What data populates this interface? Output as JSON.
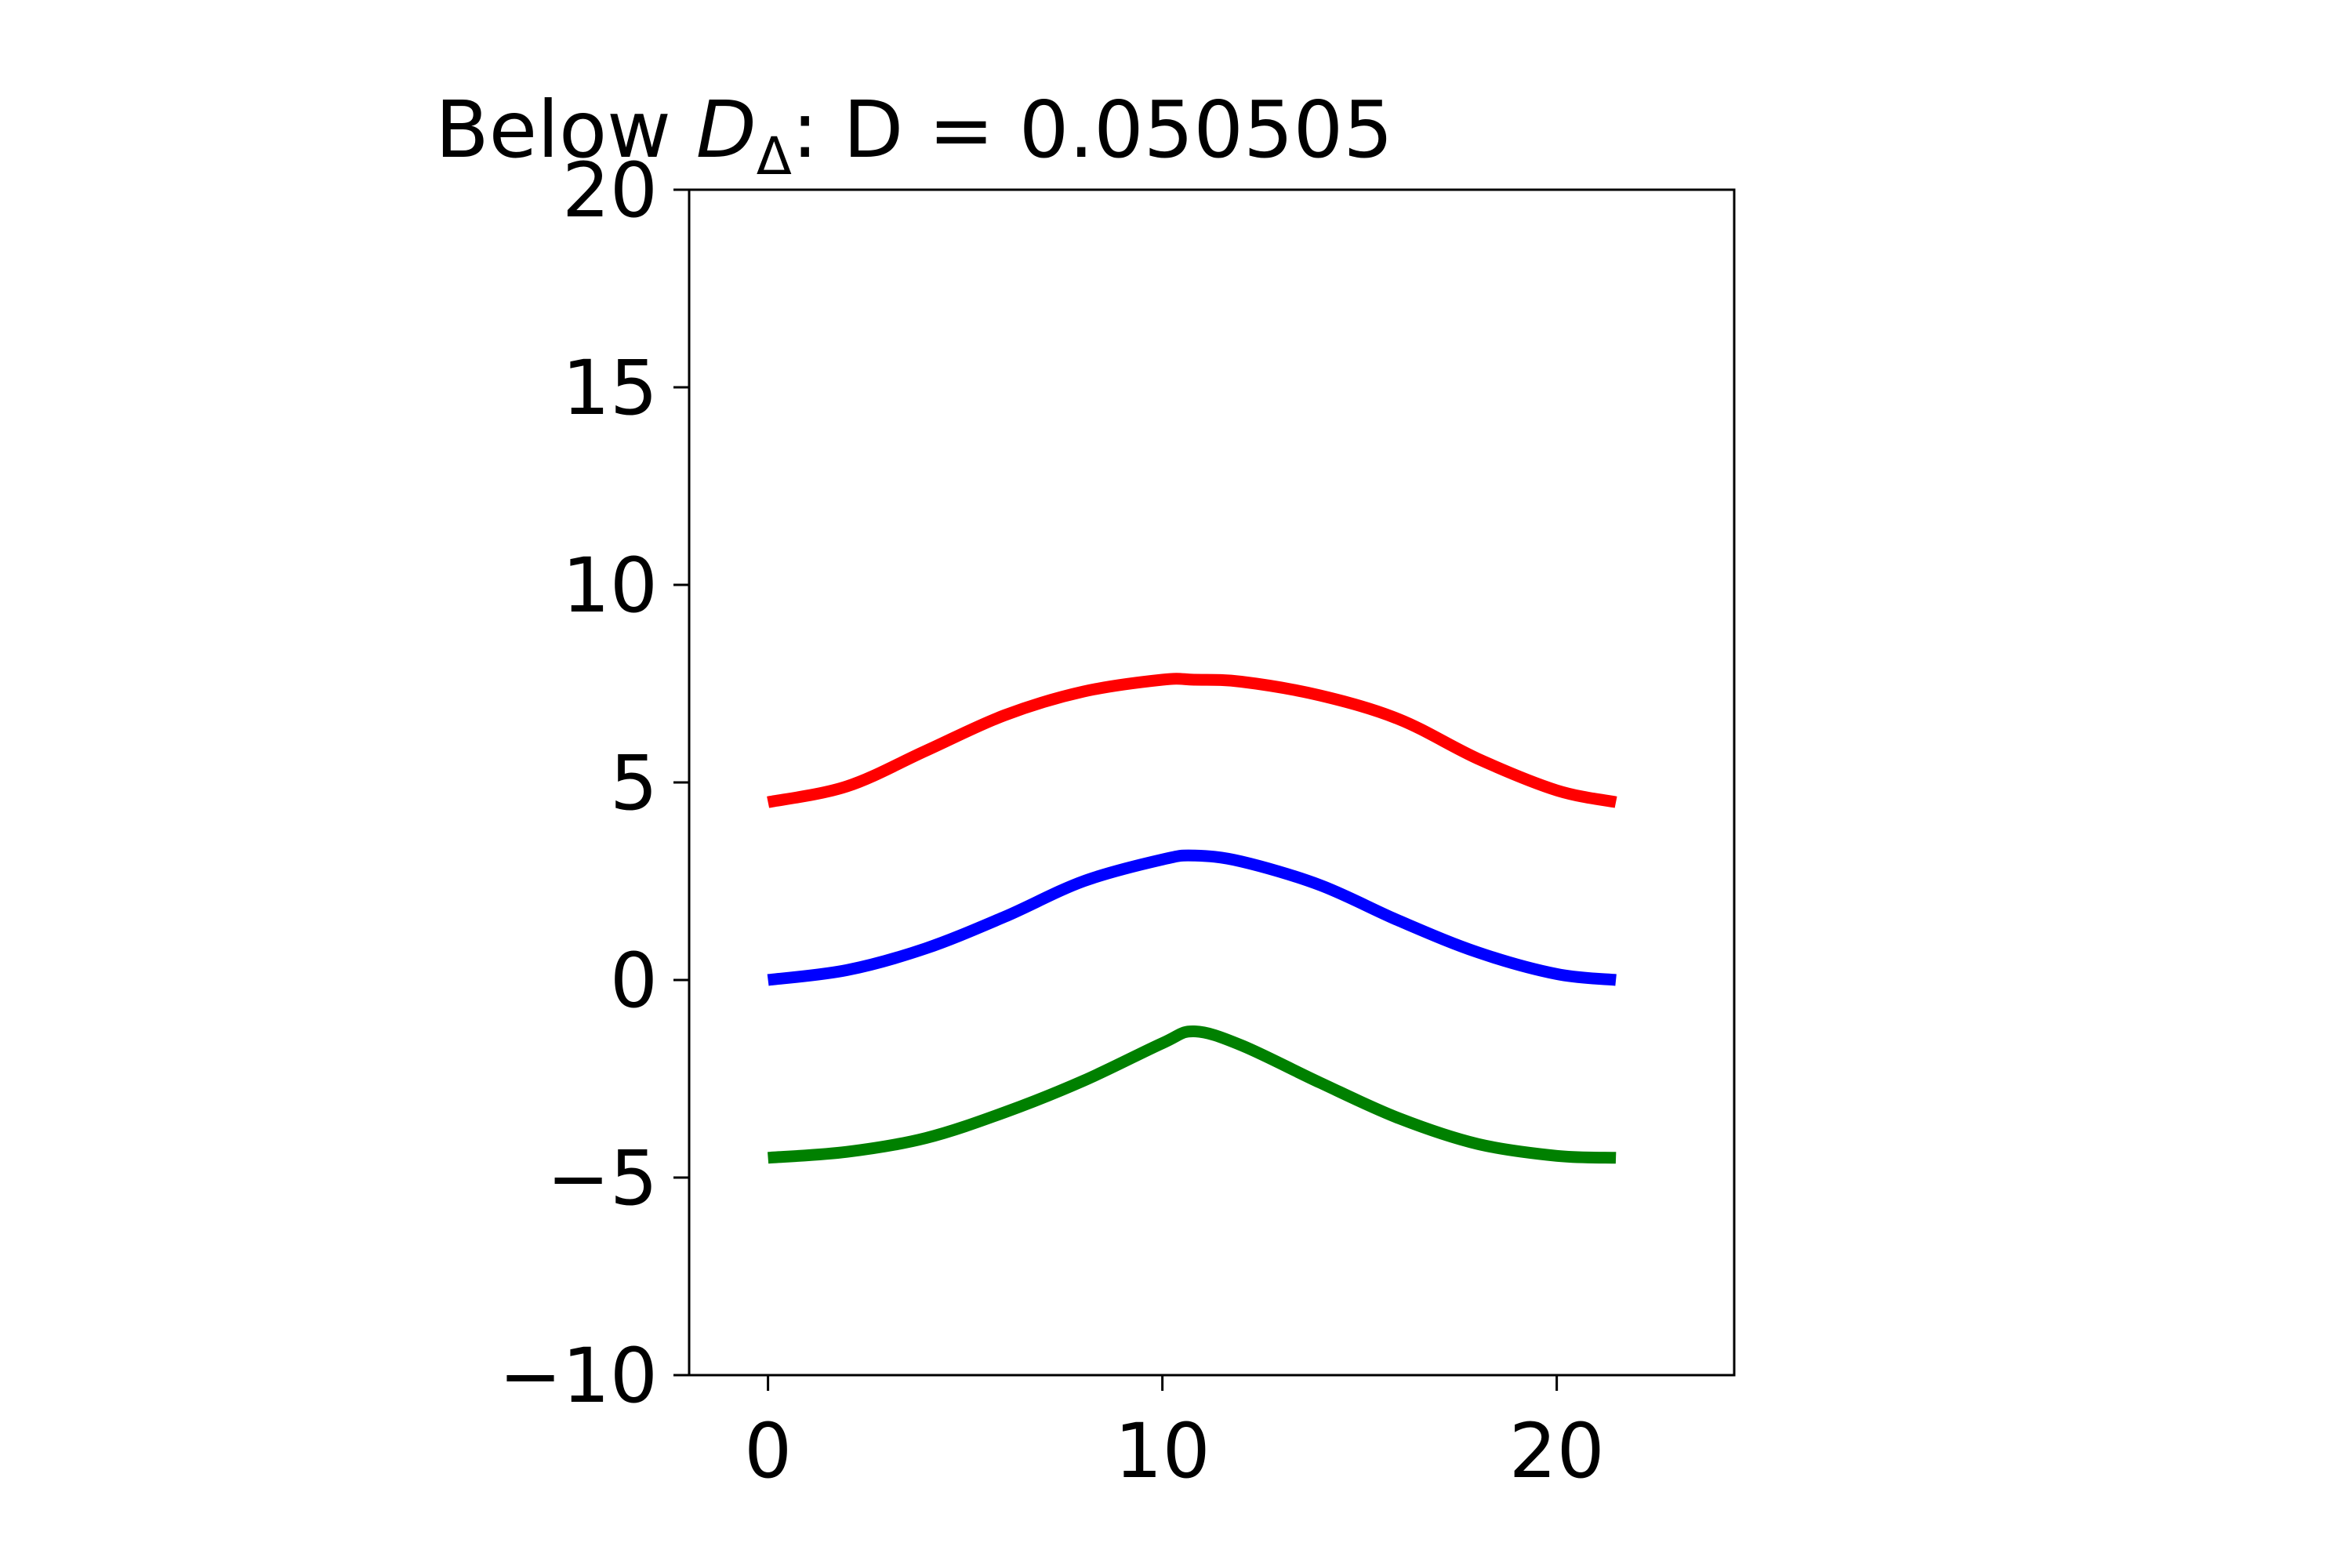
{
  "chart_data": {
    "type": "line",
    "title": {
      "prefix": "Below ",
      "symbol": "D",
      "subscript": "Δ",
      "suffix": ": D = 0.050505"
    },
    "xlabel": "",
    "ylabel": "",
    "xlim": [
      -2,
      24.5
    ],
    "ylim": [
      -10,
      20
    ],
    "xticks": [
      0,
      10,
      20
    ],
    "yticks": [
      -10,
      -5,
      0,
      5,
      10,
      15,
      20
    ],
    "xtick_labels": [
      "0",
      "10",
      "20"
    ],
    "ytick_labels": [
      "−10",
      "−5",
      "0",
      "5",
      "10",
      "15",
      "20"
    ],
    "grid": false,
    "legend": "none",
    "series": [
      {
        "color": "#ff0000",
        "x": [
          0,
          2,
          4,
          6,
          8,
          10,
          10.8,
          12,
          14,
          16,
          18,
          20,
          21.5
        ],
        "y": [
          4.5,
          4.9,
          5.8,
          6.7,
          7.3,
          7.6,
          7.6,
          7.55,
          7.2,
          6.6,
          5.6,
          4.8,
          4.5
        ]
      },
      {
        "color": "#0000ff",
        "x": [
          0,
          2,
          4,
          6,
          8,
          10,
          10.8,
          12,
          14,
          16,
          18,
          20,
          21.5
        ],
        "y": [
          0,
          0.25,
          0.8,
          1.6,
          2.5,
          3.05,
          3.15,
          3.0,
          2.4,
          1.5,
          0.7,
          0.15,
          0
        ]
      },
      {
        "color": "#008000",
        "x": [
          0,
          2,
          4,
          6,
          8,
          10,
          10.8,
          12,
          14,
          16,
          18,
          20,
          21.5
        ],
        "y": [
          -4.5,
          -4.35,
          -4.0,
          -3.35,
          -2.55,
          -1.6,
          -1.3,
          -1.65,
          -2.6,
          -3.5,
          -4.15,
          -4.45,
          -4.5
        ]
      }
    ]
  }
}
